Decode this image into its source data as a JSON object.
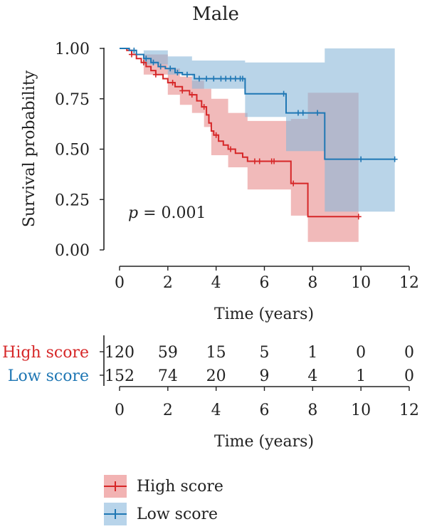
{
  "chart_data": {
    "type": "line",
    "subtype": "kaplan-meier",
    "title": "Male",
    "xlabel": "Time (years)",
    "ylabel": "Survival probability",
    "xlim": [
      0,
      12
    ],
    "ylim": [
      0,
      1
    ],
    "x_ticks": [
      "0",
      "2",
      "4",
      "6",
      "8",
      "10",
      "12"
    ],
    "y_ticks": [
      "0.00",
      "0.25",
      "0.50",
      "0.75",
      "1.00"
    ],
    "annotation": {
      "prefix": "p",
      "text": " = 0.001"
    },
    "grid": false,
    "series": [
      {
        "name": "High score",
        "color": "#d62728",
        "band_color": "#e88c8c",
        "steps": [
          [
            0,
            1.0
          ],
          [
            0.3,
            0.99
          ],
          [
            0.5,
            0.97
          ],
          [
            0.7,
            0.95
          ],
          [
            0.9,
            0.93
          ],
          [
            1.1,
            0.91
          ],
          [
            1.3,
            0.89
          ],
          [
            1.5,
            0.87
          ],
          [
            1.8,
            0.85
          ],
          [
            2.0,
            0.83
          ],
          [
            2.3,
            0.81
          ],
          [
            2.6,
            0.79
          ],
          [
            2.9,
            0.77
          ],
          [
            3.2,
            0.74
          ],
          [
            3.4,
            0.71
          ],
          [
            3.6,
            0.67
          ],
          [
            3.7,
            0.63
          ],
          [
            3.8,
            0.59
          ],
          [
            3.9,
            0.57
          ],
          [
            4.1,
            0.54
          ],
          [
            4.3,
            0.52
          ],
          [
            4.5,
            0.5
          ],
          [
            4.8,
            0.48
          ],
          [
            5.1,
            0.46
          ],
          [
            5.3,
            0.44
          ],
          [
            7.1,
            0.33
          ],
          [
            7.8,
            0.165
          ],
          [
            9.9,
            0.165
          ]
        ],
        "ci_upper": [
          [
            0,
            1.0
          ],
          [
            1.0,
            0.97
          ],
          [
            2.0,
            0.9
          ],
          [
            2.5,
            0.86
          ],
          [
            3.0,
            0.84
          ],
          [
            3.5,
            0.8
          ],
          [
            3.8,
            0.75
          ],
          [
            4.5,
            0.68
          ],
          [
            5.3,
            0.64
          ],
          [
            7.1,
            0.65
          ],
          [
            7.8,
            0.78
          ],
          [
            9.9,
            0.78
          ]
        ],
        "ci_lower": [
          [
            0,
            1.0
          ],
          [
            1.0,
            0.87
          ],
          [
            2.0,
            0.77
          ],
          [
            2.5,
            0.72
          ],
          [
            3.0,
            0.68
          ],
          [
            3.5,
            0.61
          ],
          [
            3.8,
            0.47
          ],
          [
            4.5,
            0.41
          ],
          [
            5.3,
            0.3
          ],
          [
            7.1,
            0.17
          ],
          [
            7.8,
            0.04
          ],
          [
            9.9,
            0.04
          ]
        ],
        "censor_x": [
          0.5,
          1.0,
          1.5,
          2.2,
          2.6,
          3.0,
          3.5,
          4.0,
          4.6,
          5.6,
          5.8,
          6.3,
          6.4,
          7.2,
          9.9
        ]
      },
      {
        "name": "Low score",
        "color": "#1f77b4",
        "band_color": "#8ab7d9",
        "steps": [
          [
            0,
            1.0
          ],
          [
            0.4,
            0.99
          ],
          [
            0.7,
            0.97
          ],
          [
            1.0,
            0.95
          ],
          [
            1.3,
            0.93
          ],
          [
            1.6,
            0.91
          ],
          [
            1.9,
            0.9
          ],
          [
            2.3,
            0.88
          ],
          [
            2.6,
            0.87
          ],
          [
            3.1,
            0.85
          ],
          [
            5.2,
            0.775
          ],
          [
            6.9,
            0.68
          ],
          [
            8.5,
            0.45
          ],
          [
            11.4,
            0.45
          ]
        ],
        "ci_upper": [
          [
            0,
            1.0
          ],
          [
            1.0,
            0.99
          ],
          [
            2.0,
            0.96
          ],
          [
            3.0,
            0.94
          ],
          [
            5.2,
            0.93
          ],
          [
            6.9,
            0.93
          ],
          [
            8.5,
            1.0
          ],
          [
            11.4,
            1.0
          ]
        ],
        "ci_lower": [
          [
            0,
            1.0
          ],
          [
            1.0,
            0.92
          ],
          [
            2.0,
            0.87
          ],
          [
            3.0,
            0.8
          ],
          [
            5.2,
            0.66
          ],
          [
            6.9,
            0.49
          ],
          [
            8.5,
            0.19
          ],
          [
            11.4,
            0.19
          ]
        ],
        "censor_x": [
          0.6,
          1.1,
          1.4,
          1.7,
          2.1,
          2.4,
          2.8,
          3.3,
          3.6,
          3.9,
          4.2,
          4.4,
          4.6,
          4.8,
          5.0,
          5.1,
          6.8,
          7.4,
          7.6,
          8.2,
          10.0,
          11.4
        ]
      }
    ],
    "risk_table": {
      "times": [
        "0",
        "2",
        "4",
        "6",
        "8",
        "10",
        "12"
      ],
      "xlabel": "Time (years)",
      "rows": [
        {
          "label": "High score",
          "color": "#d62728",
          "counts": [
            "120",
            "59",
            "15",
            "5",
            "1",
            "0",
            "0"
          ]
        },
        {
          "label": "Low score",
          "color": "#1f77b4",
          "counts": [
            "152",
            "74",
            "20",
            "9",
            "4",
            "1",
            "0"
          ]
        }
      ]
    },
    "legend": {
      "placement": "bottom-left",
      "items": [
        {
          "label": "High score",
          "color": "#d62728",
          "box_color": "#f2b3b3"
        },
        {
          "label": "Low score",
          "color": "#1f77b4",
          "box_color": "#b8d4ea"
        }
      ]
    }
  }
}
